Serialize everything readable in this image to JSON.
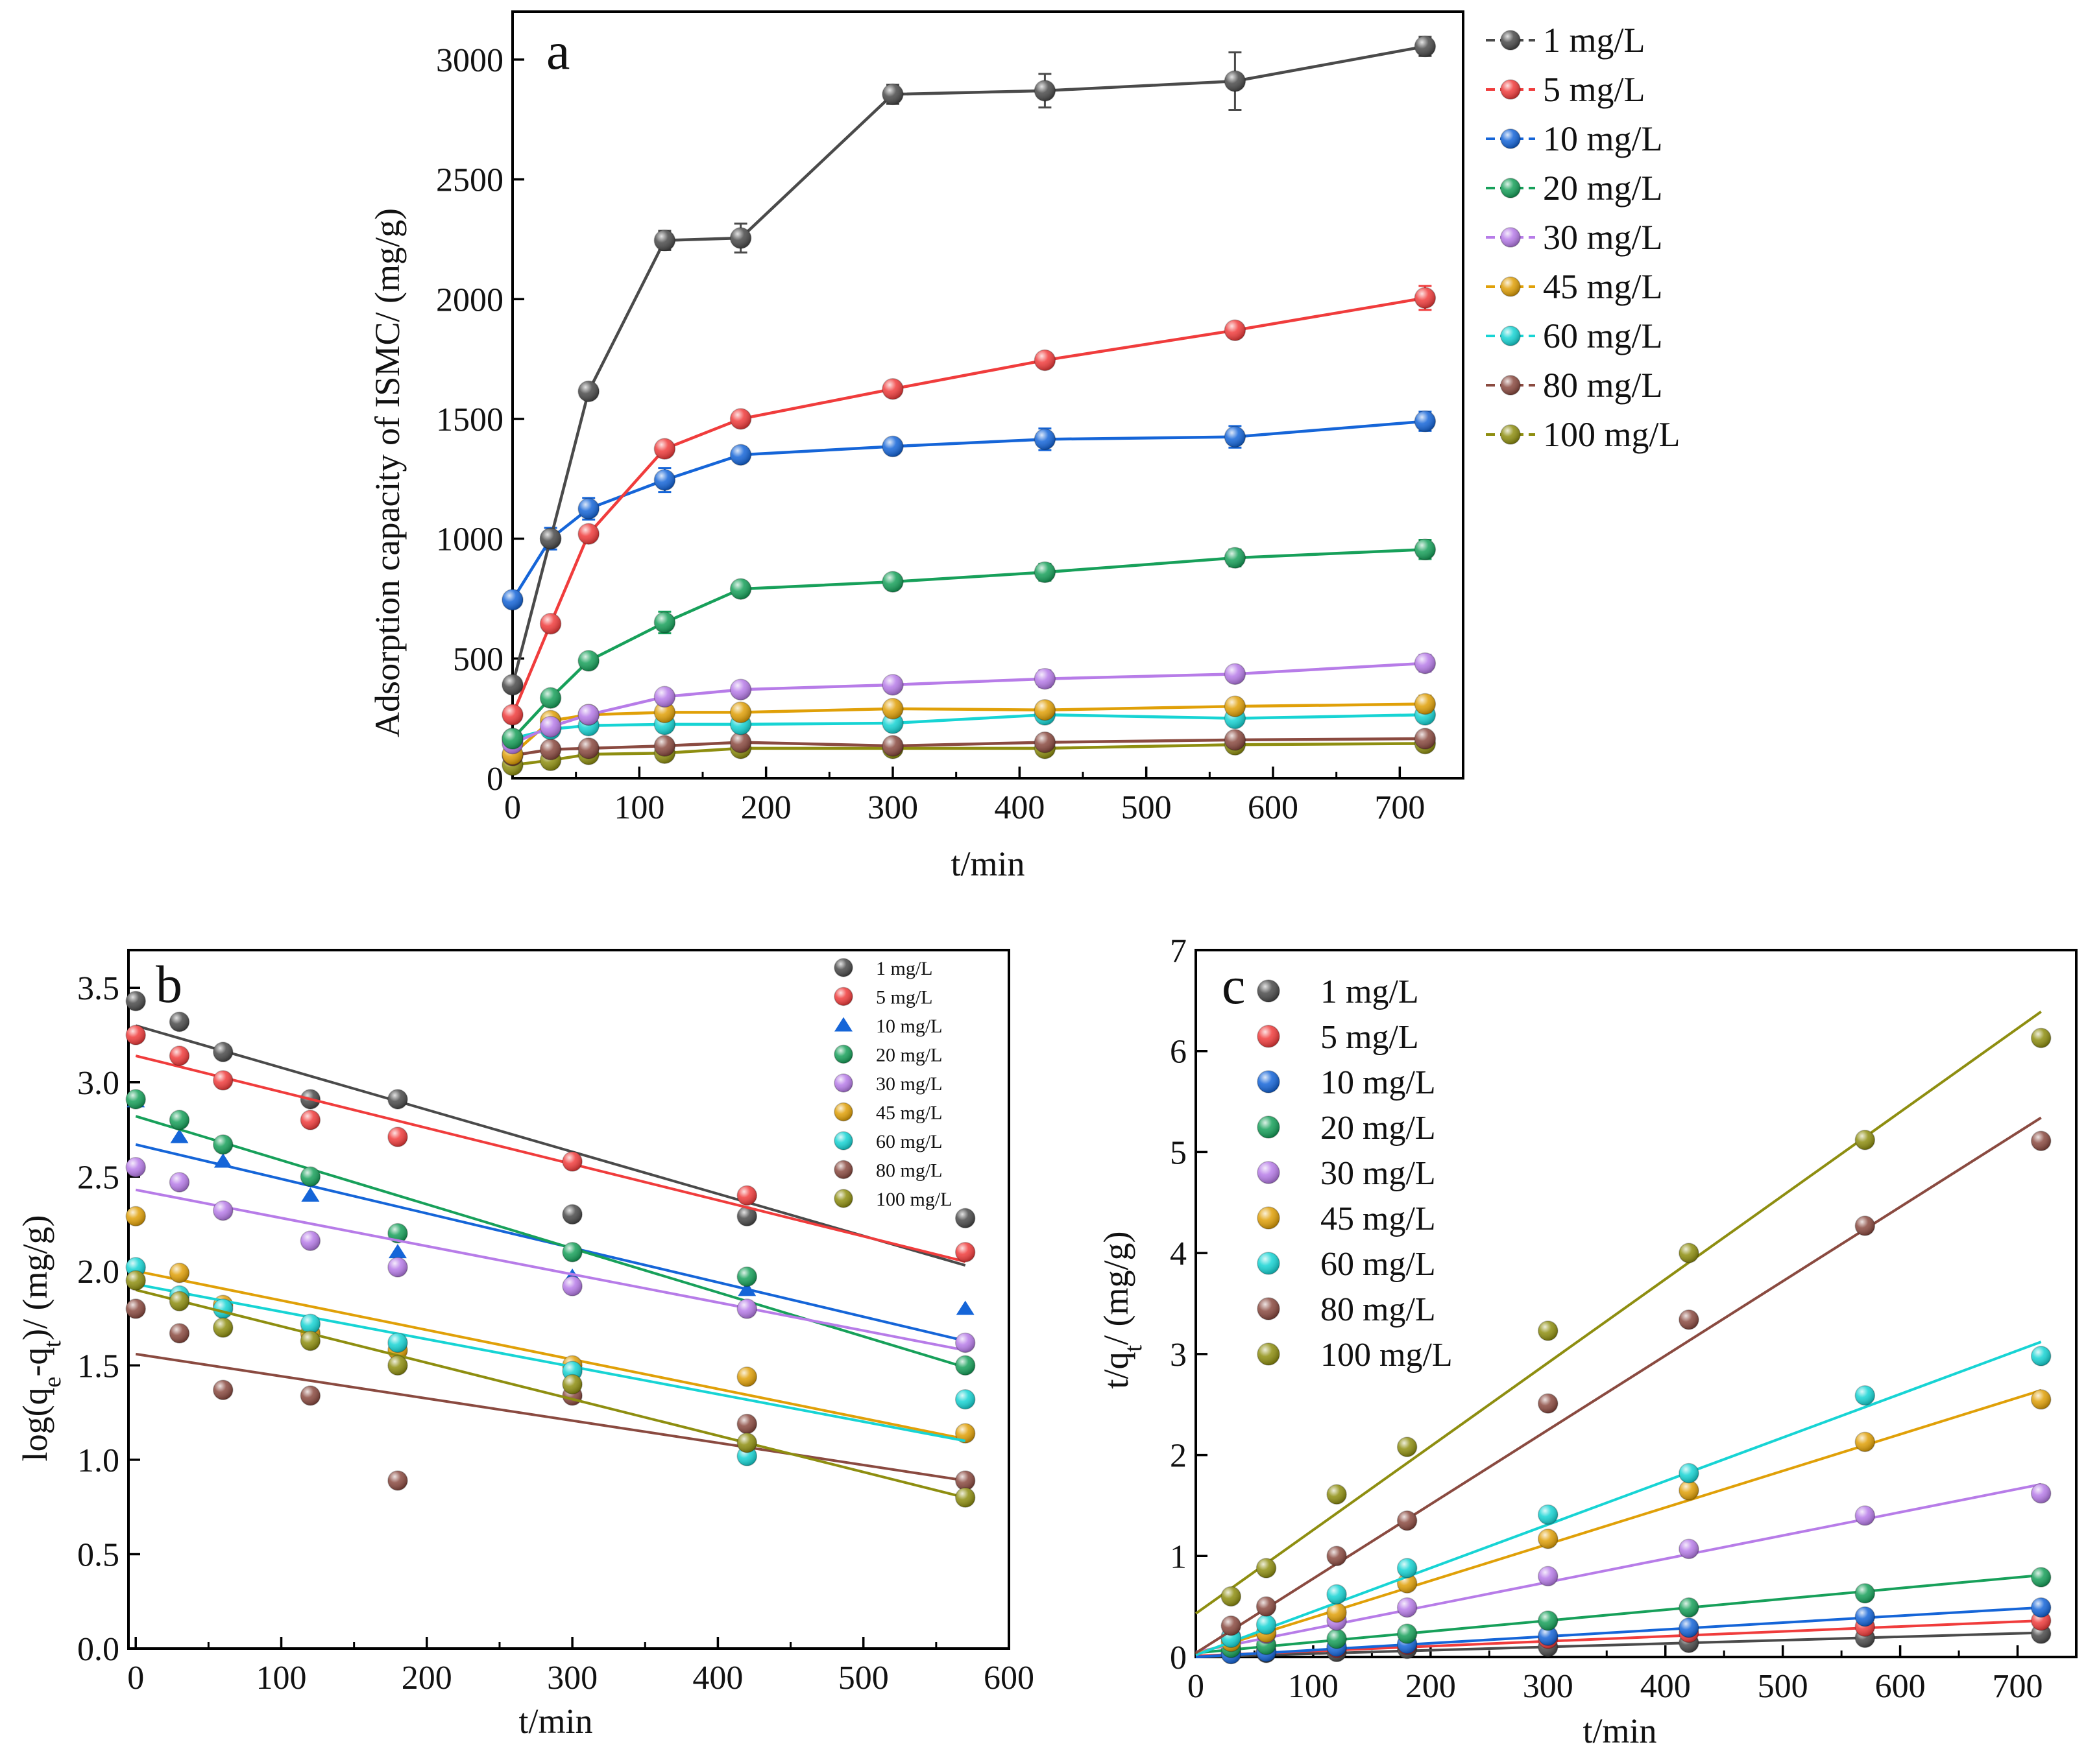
{
  "colors": {
    "c1": "#4a4a4a",
    "c5": "#f03c3c",
    "c10": "#1565d8",
    "c20": "#17a05a",
    "c30": "#b77ce8",
    "c45": "#e0a008",
    "c60": "#17d4d4",
    "c80": "#8a4a40",
    "c100": "#8e8e10"
  },
  "chart_data": [
    {
      "panel_label": "a",
      "type": "line",
      "xlabel": "t/min",
      "ylabel": "Adsorption capacity of ISMC/ (mg/g)",
      "xlim": [
        0,
        750
      ],
      "ylim": [
        0,
        3200
      ],
      "xticks": [
        "0",
        "100",
        "200",
        "300",
        "400",
        "500",
        "600",
        "700"
      ],
      "yticks": [
        "0",
        "500",
        "1000",
        "1500",
        "2000",
        "2500",
        "3000"
      ],
      "x": [
        0,
        30,
        60,
        120,
        180,
        300,
        420,
        570,
        720
      ],
      "legend_position": "outside-right",
      "series": [
        {
          "name": "1 mg/L",
          "color_key": "c1",
          "values": [
            390,
            1000,
            1615,
            2245,
            2255,
            2855,
            2870,
            2910,
            3055
          ],
          "errors": [
            30,
            30,
            30,
            40,
            60,
            40,
            70,
            120,
            40
          ]
        },
        {
          "name": "5 mg/L",
          "color_key": "c5",
          "values": [
            265,
            645,
            1020,
            1375,
            1500,
            1625,
            1745,
            1870,
            2005
          ],
          "errors": [
            20,
            25,
            25,
            25,
            25,
            25,
            30,
            25,
            50
          ]
        },
        {
          "name": "10 mg/L",
          "color_key": "c10",
          "values": [
            745,
            1000,
            1125,
            1245,
            1350,
            1385,
            1415,
            1425,
            1490
          ],
          "errors": [
            25,
            45,
            45,
            50,
            30,
            30,
            45,
            45,
            40
          ]
        },
        {
          "name": "20 mg/L",
          "color_key": "c20",
          "values": [
            165,
            335,
            490,
            650,
            790,
            820,
            860,
            920,
            955
          ],
          "errors": [
            15,
            20,
            30,
            45,
            25,
            25,
            35,
            35,
            40
          ]
        },
        {
          "name": "30 mg/L",
          "color_key": "c30",
          "values": [
            145,
            215,
            265,
            340,
            370,
            390,
            415,
            435,
            480
          ],
          "errors": [
            10,
            15,
            20,
            25,
            25,
            25,
            35,
            30,
            35
          ]
        },
        {
          "name": "45 mg/L",
          "color_key": "c45",
          "values": [
            100,
            240,
            265,
            275,
            275,
            290,
            285,
            300,
            310
          ],
          "errors": [
            10,
            20,
            25,
            30,
            30,
            30,
            30,
            30,
            35
          ]
        },
        {
          "name": "60 mg/L",
          "color_key": "c60",
          "values": [
            165,
            205,
            220,
            225,
            225,
            230,
            265,
            250,
            265
          ],
          "errors": [
            10,
            15,
            20,
            20,
            20,
            25,
            25,
            25,
            25
          ]
        },
        {
          "name": "80 mg/L",
          "color_key": "c80",
          "values": [
            95,
            120,
            125,
            135,
            150,
            135,
            150,
            160,
            165
          ],
          "errors": [
            10,
            15,
            15,
            15,
            20,
            20,
            25,
            25,
            25
          ]
        },
        {
          "name": "100 mg/L",
          "color_key": "c100",
          "values": [
            55,
            75,
            100,
            105,
            125,
            125,
            125,
            140,
            145
          ],
          "errors": [
            10,
            15,
            15,
            15,
            20,
            20,
            25,
            25,
            25
          ]
        }
      ]
    },
    {
      "panel_label": "b",
      "type": "scatter",
      "xlabel": "t/min",
      "ylabel": "log(qe-qt)/ (mg/g)",
      "ylabel_parts": [
        "log(q",
        "e",
        "-q",
        "t",
        ")/ (mg/g)"
      ],
      "xlim": [
        -5,
        600
      ],
      "ylim": [
        0,
        3.7
      ],
      "xticks": [
        "0",
        "100",
        "200",
        "300",
        "400",
        "500",
        "600"
      ],
      "yticks": [
        "0.0",
        "0.5",
        "1.0",
        "1.5",
        "2.0",
        "2.5",
        "3.0",
        "3.5"
      ],
      "x": [
        0,
        30,
        60,
        120,
        180,
        300,
        420,
        570
      ],
      "legend_position": "top-right",
      "series": [
        {
          "name": "1 mg/L",
          "color_key": "c1",
          "marker": "circle",
          "values": [
            3.43,
            3.32,
            3.16,
            2.91,
            2.91,
            2.3,
            2.29,
            2.28
          ],
          "fit": [
            3.3,
            2.03
          ]
        },
        {
          "name": "5 mg/L",
          "color_key": "c5",
          "marker": "circle",
          "values": [
            3.25,
            3.14,
            3.01,
            2.8,
            2.71,
            2.58,
            2.4,
            2.1
          ],
          "fit": [
            3.14,
            2.05
          ]
        },
        {
          "name": "10 mg/L",
          "color_key": "c10",
          "marker": "triangle",
          "values": [
            2.9,
            2.71,
            2.58,
            2.4,
            2.1,
            1.97,
            1.9,
            1.8
          ],
          "fit": [
            2.67,
            1.63
          ]
        },
        {
          "name": "20 mg/L",
          "color_key": "c20",
          "marker": "circle",
          "values": [
            2.91,
            2.8,
            2.67,
            2.5,
            2.2,
            2.1,
            1.97,
            1.5
          ],
          "fit": [
            2.82,
            1.49
          ]
        },
        {
          "name": "30 mg/L",
          "color_key": "c30",
          "marker": "circle",
          "values": [
            2.55,
            2.47,
            2.32,
            2.16,
            2.02,
            1.92,
            1.8,
            1.62
          ],
          "fit": [
            2.43,
            1.58
          ]
        },
        {
          "name": "45 mg/L",
          "color_key": "c45",
          "marker": "circle",
          "values": [
            2.29,
            1.99,
            1.82,
            1.67,
            1.58,
            1.5,
            1.44,
            1.14
          ],
          "fit": [
            2.0,
            1.11
          ]
        },
        {
          "name": "60 mg/L",
          "color_key": "c60",
          "marker": "circle",
          "values": [
            2.02,
            1.87,
            1.8,
            1.72,
            1.62,
            1.47,
            1.02,
            1.32
          ],
          "fit": [
            1.93,
            1.1
          ]
        },
        {
          "name": "80 mg/L",
          "color_key": "c80",
          "marker": "circle",
          "values": [
            1.8,
            1.67,
            1.37,
            1.34,
            0.89,
            1.34,
            1.19,
            0.89
          ],
          "fit": [
            1.56,
            0.89
          ]
        },
        {
          "name": "100 mg/L",
          "color_key": "c100",
          "marker": "circle",
          "values": [
            1.95,
            1.84,
            1.7,
            1.63,
            1.5,
            1.4,
            1.09,
            0.8
          ],
          "fit": [
            1.9,
            0.8
          ]
        }
      ]
    },
    {
      "panel_label": "c",
      "type": "scatter",
      "xlabel": "t/min",
      "ylabel": "t/qt/ (mg/g)",
      "ylabel_parts": [
        "t/q",
        "t",
        "/ (mg/g)"
      ],
      "xlim": [
        0,
        750
      ],
      "ylim": [
        0,
        7
      ],
      "xticks": [
        "0",
        "100",
        "200",
        "300",
        "400",
        "500",
        "600",
        "700"
      ],
      "yticks": [
        "0",
        "1",
        "2",
        "3",
        "4",
        "5",
        "6",
        "7"
      ],
      "x": [
        30,
        60,
        120,
        180,
        300,
        420,
        570,
        720
      ],
      "legend_position": "top-left",
      "series": [
        {
          "name": "1 mg/L",
          "color_key": "c1",
          "values": [
            0.03,
            0.04,
            0.05,
            0.08,
            0.1,
            0.14,
            0.19,
            0.23
          ],
          "fit": [
            0.0,
            0.24
          ]
        },
        {
          "name": "5 mg/L",
          "color_key": "c5",
          "values": [
            0.05,
            0.06,
            0.09,
            0.12,
            0.18,
            0.24,
            0.3,
            0.36
          ],
          "fit": [
            0.01,
            0.36
          ]
        },
        {
          "name": "10 mg/L",
          "color_key": "c10",
          "values": [
            0.03,
            0.05,
            0.1,
            0.13,
            0.21,
            0.29,
            0.4,
            0.49
          ],
          "fit": [
            0.0,
            0.49
          ]
        },
        {
          "name": "20 mg/L",
          "color_key": "c20",
          "values": [
            0.09,
            0.12,
            0.18,
            0.23,
            0.36,
            0.49,
            0.63,
            0.79
          ],
          "fit": [
            0.04,
            0.81
          ]
        },
        {
          "name": "30 mg/L",
          "color_key": "c30",
          "values": [
            0.2,
            0.23,
            0.36,
            0.49,
            0.8,
            1.07,
            1.4,
            1.62
          ],
          "fit": [
            0.05,
            1.71
          ]
        },
        {
          "name": "45 mg/L",
          "color_key": "c45",
          "values": [
            0.15,
            0.24,
            0.44,
            0.73,
            1.17,
            1.65,
            2.13,
            2.55
          ],
          "fit": [
            0.03,
            2.64
          ]
        },
        {
          "name": "60 mg/L",
          "color_key": "c60",
          "values": [
            0.19,
            0.32,
            0.62,
            0.88,
            1.41,
            1.82,
            2.59,
            2.98
          ],
          "fit": [
            0.02,
            3.12
          ]
        },
        {
          "name": "80 mg/L",
          "color_key": "c80",
          "values": [
            0.31,
            0.5,
            1.0,
            1.35,
            2.51,
            3.34,
            4.27,
            5.11
          ],
          "fit": [
            0.04,
            5.34
          ]
        },
        {
          "name": "100 mg/L",
          "color_key": "c100",
          "values": [
            0.6,
            0.88,
            1.61,
            2.08,
            3.23,
            4.0,
            5.12,
            6.13
          ],
          "fit": [
            0.43,
            6.39
          ]
        }
      ]
    }
  ]
}
